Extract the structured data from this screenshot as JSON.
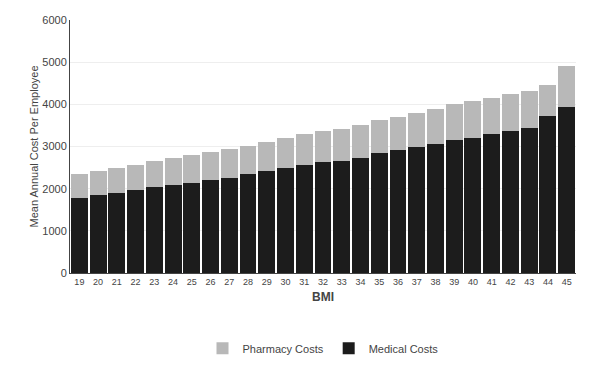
{
  "chart_data": {
    "type": "bar",
    "stacked": true,
    "xlabel": "BMI",
    "ylabel": "Mean Annual Cost Per Employee",
    "categories": [
      19,
      20,
      21,
      22,
      23,
      24,
      25,
      26,
      27,
      28,
      29,
      30,
      31,
      32,
      33,
      34,
      35,
      36,
      37,
      38,
      39,
      40,
      41,
      42,
      43,
      44,
      45
    ],
    "series": [
      {
        "name": "Medical Costs",
        "color": "#1c1c1c",
        "values": [
          1780,
          1850,
          1900,
          1970,
          2040,
          2090,
          2140,
          2200,
          2250,
          2350,
          2430,
          2490,
          2570,
          2630,
          2660,
          2730,
          2840,
          2910,
          2980,
          3070,
          3150,
          3210,
          3290,
          3360,
          3440,
          3730,
          3940
        ]
      },
      {
        "name": "Pharmacy Costs",
        "color": "#b8b8b8",
        "values": [
          560,
          580,
          600,
          590,
          620,
          640,
          660,
          680,
          700,
          670,
          680,
          710,
          730,
          740,
          750,
          770,
          780,
          790,
          810,
          830,
          850,
          860,
          870,
          880,
          870,
          740,
          960
        ]
      }
    ],
    "ylim": [
      0,
      6000
    ],
    "yticks": [
      0,
      1000,
      2000,
      3000,
      4000,
      5000,
      6000
    ],
    "grid": true,
    "legend": "bottom"
  }
}
